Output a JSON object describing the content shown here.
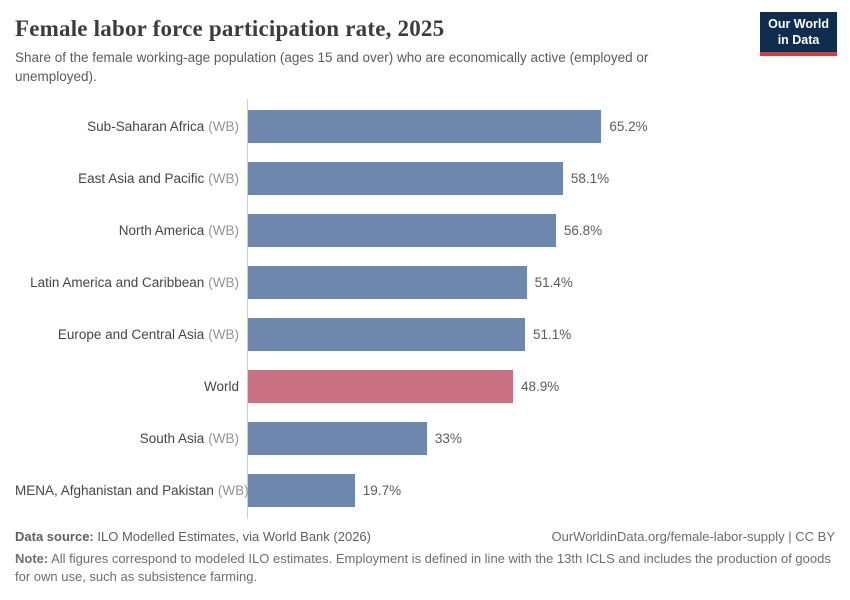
{
  "header": {
    "title": "Female labor force participation rate, 2025",
    "subtitle": "Share of the female working-age population (ages 15 and over) who are economically active (employed or unemployed)."
  },
  "logo": {
    "line1": "Our World",
    "line2": "in Data",
    "bg_color": "#0f2e4f",
    "accent_color": "#d93d37"
  },
  "chart_data": {
    "type": "bar",
    "orientation": "horizontal",
    "title": "Female labor force participation rate, 2025",
    "value_unit": "%",
    "xlim": [
      0,
      100
    ],
    "grid": false,
    "legend": false,
    "colors": {
      "default": "#6d87ad",
      "highlight": "#cb7184"
    },
    "bars": [
      {
        "label": "Sub-Saharan Africa",
        "suffix": "(WB)",
        "value": 65.2,
        "value_label": "65.2%",
        "highlight": false
      },
      {
        "label": "East Asia and Pacific",
        "suffix": "(WB)",
        "value": 58.1,
        "value_label": "58.1%",
        "highlight": false
      },
      {
        "label": "North America",
        "suffix": "(WB)",
        "value": 56.8,
        "value_label": "56.8%",
        "highlight": false
      },
      {
        "label": "Latin America and Caribbean",
        "suffix": "(WB)",
        "value": 51.4,
        "value_label": "51.4%",
        "highlight": false
      },
      {
        "label": "Europe and Central Asia",
        "suffix": "(WB)",
        "value": 51.1,
        "value_label": "51.1%",
        "highlight": false
      },
      {
        "label": "World",
        "suffix": "",
        "value": 48.9,
        "value_label": "48.9%",
        "highlight": true
      },
      {
        "label": "South Asia",
        "suffix": "(WB)",
        "value": 33,
        "value_label": "33%",
        "highlight": false
      },
      {
        "label": "MENA, Afghanistan and Pakistan",
        "suffix": "(WB)",
        "value": 19.7,
        "value_label": "19.7%",
        "highlight": false
      }
    ]
  },
  "footer": {
    "datasource_label": "Data source:",
    "datasource_text": "ILO Modelled Estimates, via World Bank (2026)",
    "url": "OurWorldinData.org/female-labor-supply",
    "separator": "|",
    "license": "CC BY",
    "note_label": "Note:",
    "note_text": "All figures correspond to modeled ILO estimates. Employment is defined in line with the 13th ICLS and includes the production of goods for own use, such as subsistence farming."
  }
}
